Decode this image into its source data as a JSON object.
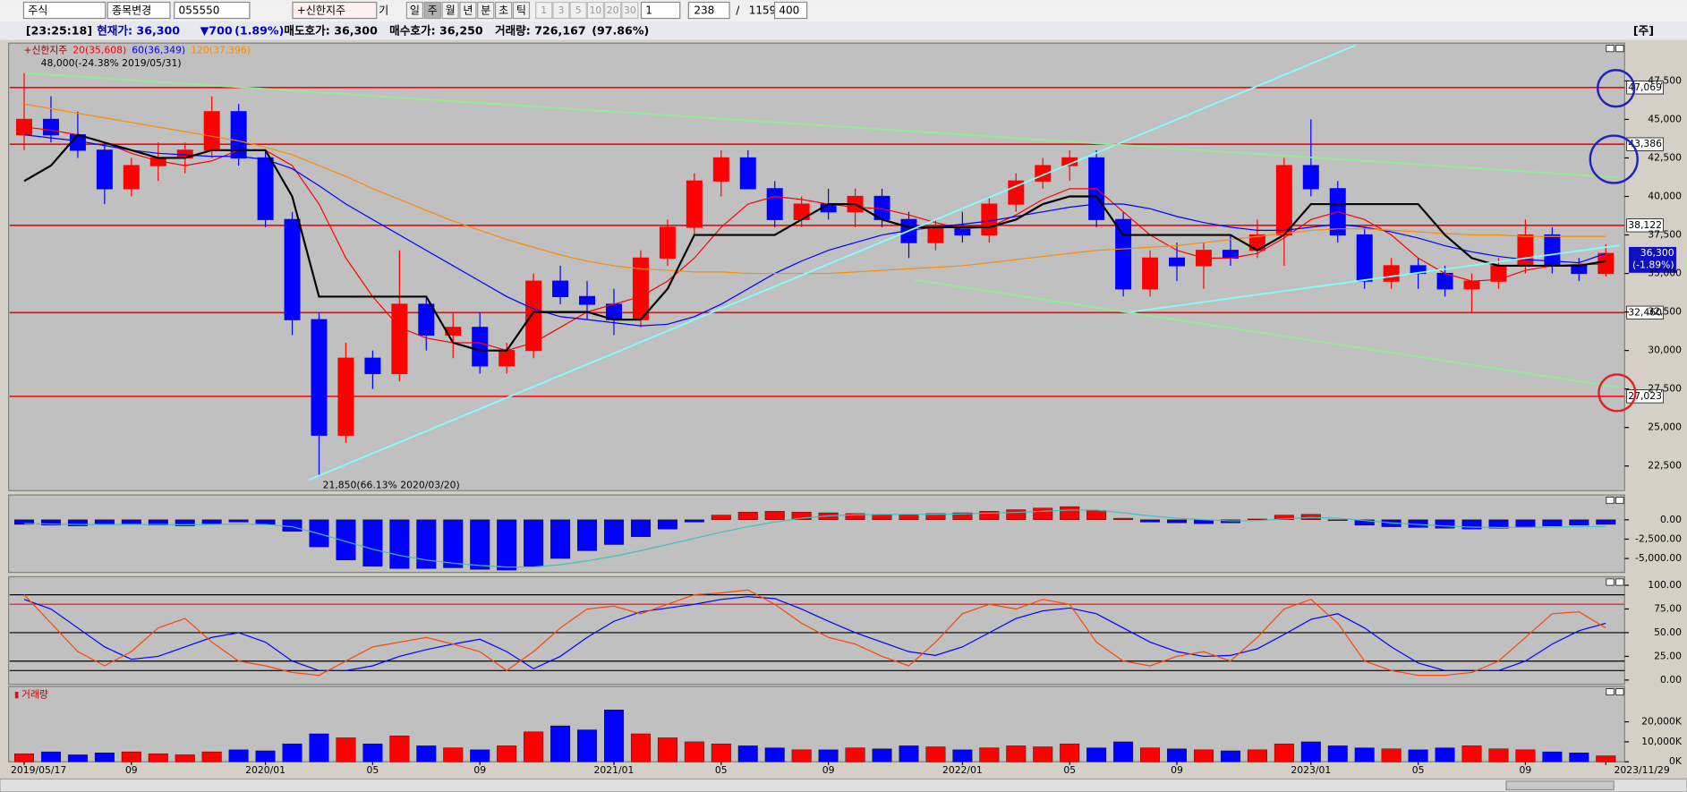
{
  "toolbar": {
    "market": "주식",
    "change": "종목변경",
    "code": "055550",
    "name": "+신한지주",
    "gi": "기",
    "periods": [
      "일",
      "주",
      "월",
      "년",
      "분",
      "초",
      "틱"
    ],
    "active_period": 1,
    "intervals": [
      "1",
      "3",
      "5",
      "10",
      "20",
      "30"
    ],
    "interval": "1",
    "count": "238",
    "sep": "/",
    "total": "1159",
    "zoom": "400"
  },
  "info": {
    "time": "[23:25:18]",
    "price": "현재가: 36,300",
    "change": "▼700",
    "rate": "(1.89%)",
    "ask": "매도호가: 36,300",
    "bid": "매수호가: 36,250",
    "volume": "거래량: 726,167",
    "volume_rate": "(97.86%)",
    "tag": "[주]"
  },
  "chart_data": [
    {
      "type": "candlestick",
      "name": "+신한지주",
      "up_color": "#ff0000",
      "down_color": "#0000ff",
      "categories": [
        "2019/05/17",
        null,
        null,
        null,
        "09",
        null,
        null,
        null,
        null,
        "2020/01",
        null,
        null,
        null,
        "05",
        null,
        null,
        null,
        "09",
        null,
        null,
        null,
        null,
        "2021/01",
        null,
        null,
        null,
        "05",
        null,
        null,
        null,
        "09",
        null,
        null,
        null,
        null,
        "2022/01",
        null,
        null,
        null,
        "05",
        null,
        null,
        null,
        "09",
        null,
        null,
        null,
        null,
        "2023/01",
        null,
        null,
        null,
        "05",
        null,
        null,
        null,
        "09",
        null,
        null,
        "2023/11/29"
      ],
      "open": [
        44000,
        45000,
        44000,
        43000,
        40500,
        42000,
        42500,
        43000,
        45500,
        42500,
        38500,
        32000,
        24500,
        29500,
        28500,
        33000,
        31000,
        31500,
        29000,
        30000,
        34500,
        33500,
        33000,
        32000,
        36000,
        38000,
        41000,
        42500,
        40500,
        38500,
        39500,
        39000,
        40000,
        38500,
        37000,
        38000,
        37500,
        39500,
        41000,
        42000,
        42500,
        38500,
        34000,
        36000,
        35500,
        36500,
        36500,
        37500,
        42000,
        40500,
        37500,
        34500,
        35500,
        35000,
        34000,
        34500,
        35500,
        37500,
        35500,
        35000
      ],
      "high": [
        48000,
        46500,
        45500,
        43500,
        42500,
        43500,
        43500,
        46500,
        46000,
        43000,
        39000,
        32500,
        30500,
        30000,
        36500,
        33500,
        32500,
        32500,
        30500,
        35000,
        35500,
        34500,
        34000,
        36500,
        38500,
        41500,
        43000,
        43000,
        41000,
        40000,
        40500,
        40500,
        40500,
        39000,
        38500,
        39000,
        40000,
        41500,
        42500,
        43000,
        43000,
        39000,
        36500,
        37000,
        37000,
        37500,
        38500,
        42500,
        45000,
        41000,
        38000,
        36000,
        36000,
        35500,
        35000,
        36000,
        38500,
        38000,
        36000,
        36900
      ],
      "low": [
        43000,
        43500,
        42500,
        39500,
        40000,
        41000,
        41500,
        42500,
        42000,
        38000,
        31000,
        21850,
        24000,
        27500,
        28000,
        30000,
        29500,
        28500,
        28500,
        29500,
        33000,
        32000,
        31000,
        31500,
        35500,
        37500,
        40000,
        40500,
        38000,
        38000,
        38500,
        38000,
        38000,
        36000,
        36500,
        37000,
        37000,
        39000,
        40500,
        41000,
        38000,
        33500,
        33500,
        34500,
        34000,
        35500,
        36000,
        35500,
        40000,
        37000,
        34000,
        34000,
        34000,
        33500,
        32500,
        34000,
        35000,
        35000,
        34500,
        34800
      ],
      "close": [
        45000,
        44000,
        43000,
        40500,
        42000,
        42500,
        43000,
        45500,
        42500,
        38500,
        32000,
        24500,
        29500,
        28500,
        33000,
        31000,
        31500,
        29000,
        30000,
        34500,
        33500,
        33000,
        32000,
        36000,
        38000,
        41000,
        42500,
        40500,
        38500,
        39500,
        39000,
        40000,
        38500,
        37000,
        38000,
        37500,
        39500,
        41000,
        42000,
        42500,
        38500,
        34000,
        36000,
        35500,
        36500,
        36000,
        37500,
        42000,
        40500,
        37500,
        34500,
        35500,
        35000,
        34000,
        34500,
        35500,
        37500,
        35500,
        35000,
        36300
      ],
      "series": [
        {
          "name": "20(35,608)",
          "color": "#ff0000",
          "values": [
            44500,
            44300,
            44000,
            43500,
            42800,
            42300,
            42000,
            42300,
            43000,
            43000,
            42000,
            39500,
            36000,
            33500,
            31500,
            30800,
            30500,
            30500,
            30000,
            30500,
            31500,
            32500,
            33000,
            33500,
            34500,
            36000,
            38000,
            39500,
            40000,
            39800,
            39500,
            39300,
            39200,
            38800,
            38300,
            37900,
            38000,
            38800,
            39800,
            40500,
            40500,
            39000,
            37500,
            36500,
            36000,
            36000,
            36300,
            37300,
            38500,
            39000,
            38500,
            37500,
            36000,
            35000,
            34500,
            34600,
            35200,
            35500,
            35600,
            35600
          ]
        },
        {
          "name": "60(36,349)",
          "color": "#0000ff",
          "values": [
            44000,
            43800,
            43600,
            43300,
            43000,
            42800,
            42700,
            42600,
            42600,
            42400,
            41800,
            40700,
            39500,
            38500,
            37500,
            36500,
            35500,
            34500,
            33500,
            32700,
            32200,
            32000,
            31800,
            31600,
            31700,
            32200,
            33000,
            34000,
            35000,
            35800,
            36500,
            37000,
            37500,
            37800,
            38000,
            38200,
            38400,
            38700,
            39000,
            39300,
            39500,
            39500,
            39200,
            38700,
            38300,
            38000,
            37800,
            37800,
            38000,
            38200,
            38000,
            37700,
            37300,
            36800,
            36400,
            36100,
            35900,
            35800,
            35700,
            36300
          ]
        },
        {
          "name": "120(37,396)",
          "color": "#ff8c00",
          "values": [
            46000,
            45700,
            45400,
            45100,
            44800,
            44500,
            44200,
            43900,
            43600,
            43200,
            42700,
            42000,
            41300,
            40500,
            39800,
            39100,
            38400,
            37800,
            37200,
            36700,
            36200,
            35800,
            35500,
            35300,
            35200,
            35100,
            35100,
            35000,
            35000,
            35000,
            35000,
            35100,
            35200,
            35300,
            35400,
            35500,
            35700,
            35900,
            36100,
            36300,
            36500,
            36600,
            36700,
            36800,
            37000,
            37200,
            37400,
            37600,
            37800,
            37900,
            37900,
            37800,
            37700,
            37600,
            37500,
            37500,
            37400,
            37400,
            37400,
            37400
          ]
        },
        {
          "color": "#000000",
          "values": [
            41000,
            42000,
            44000,
            43500,
            43000,
            42500,
            42500,
            43000,
            43000,
            43000,
            40000,
            33500,
            33500,
            33500,
            33500,
            33500,
            30500,
            30000,
            30000,
            32500,
            32500,
            32500,
            32000,
            32000,
            34000,
            37500,
            37500,
            37500,
            37500,
            38500,
            39500,
            39500,
            38500,
            38000,
            38000,
            38000,
            38000,
            38500,
            39500,
            40000,
            40000,
            37500,
            37500,
            37500,
            37500,
            37500,
            36500,
            37500,
            39500,
            39500,
            39500,
            39500,
            39500,
            37500,
            36000,
            35500,
            35500,
            35500,
            35500,
            35800
          ]
        }
      ],
      "ylim": [
        20900,
        49950
      ],
      "yticks": [
        {
          "value": 22500,
          "label": "22,500"
        },
        {
          "value": 25000,
          "label": "25,000"
        },
        {
          "value": 27500,
          "label": "27,500"
        },
        {
          "value": 30000,
          "label": "30,000"
        },
        {
          "value": 32500,
          "label": "32,500"
        },
        {
          "value": 35000,
          "label": "35,000"
        },
        {
          "value": 37500,
          "label": "37,500"
        },
        {
          "value": 40000,
          "label": "40,000"
        },
        {
          "value": 42500,
          "label": "42,500"
        },
        {
          "value": 45000,
          "label": "45,000"
        },
        {
          "value": 47500,
          "label": "47,500"
        }
      ],
      "levels": [
        {
          "value": 47069,
          "label": "47,069"
        },
        {
          "value": 43386,
          "label": "43,386"
        },
        {
          "value": 38122,
          "label": "38,122"
        },
        {
          "value": 32460,
          "label": "32,460"
        },
        {
          "value": 27023,
          "label": "27,023"
        }
      ],
      "level_color": "#ff0000",
      "last": {
        "value": 36300,
        "label": "36,300",
        "change": "(-1.89%)"
      },
      "annotations": [
        "48,000(-24.38% 2019/05/31)",
        "21,850(66.13% 2020/03/20)"
      ]
    },
    {
      "type": "bar",
      "up_color": "#ff0000",
      "down_color": "#0000ff",
      "signal_color": "#40c0c0",
      "values": [
        -600,
        -700,
        -800,
        -600,
        -500,
        -700,
        -800,
        -500,
        -300,
        -600,
        -1500,
        -3500,
        -5200,
        -6000,
        -6300,
        -6300,
        -6200,
        -6400,
        -6500,
        -6000,
        -5000,
        -4000,
        -3200,
        -2200,
        -1200,
        -300,
        600,
        1000,
        1100,
        1000,
        900,
        800,
        700,
        600,
        800,
        900,
        1100,
        1300,
        1500,
        1700,
        1200,
        200,
        -300,
        -400,
        -500,
        -400,
        100,
        600,
        700,
        -100,
        -700,
        -900,
        -1000,
        -1100,
        -1200,
        -1100,
        -900,
        -800,
        -700,
        -600
      ],
      "signal": [
        -500,
        -550,
        -600,
        -620,
        -600,
        -600,
        -650,
        -600,
        -550,
        -600,
        -900,
        -1800,
        -2800,
        -3800,
        -4600,
        -5200,
        -5600,
        -5900,
        -6100,
        -6100,
        -5800,
        -5300,
        -4700,
        -4000,
        -3200,
        -2400,
        -1600,
        -900,
        -300,
        200,
        500,
        650,
        700,
        700,
        700,
        750,
        850,
        950,
        1100,
        1250,
        1250,
        900,
        500,
        200,
        0,
        -150,
        -100,
        100,
        300,
        200,
        -100,
        -400,
        -600,
        -800,
        -950,
        -1000,
        -1000,
        -950,
        -900,
        -850
      ],
      "ylim": [
        -6800,
        3200
      ],
      "yticks": [
        {
          "value": 0,
          "label": "0.00"
        },
        {
          "value": -2500,
          "label": "-2,500.00"
        },
        {
          "value": -5000,
          "label": "-5,000.00"
        }
      ]
    },
    {
      "type": "line",
      "series": [
        {
          "color": "#0000ff",
          "values": [
            85,
            75,
            55,
            35,
            22,
            25,
            35,
            45,
            50,
            40,
            20,
            10,
            10,
            15,
            25,
            32,
            38,
            43,
            30,
            12,
            25,
            45,
            62,
            72,
            76,
            80,
            85,
            88,
            86,
            75,
            62,
            50,
            40,
            30,
            26,
            35,
            50,
            65,
            73,
            76,
            70,
            55,
            40,
            30,
            25,
            26,
            33,
            48,
            64,
            70,
            55,
            35,
            18,
            10,
            10,
            10,
            20,
            38,
            52,
            60
          ]
        },
        {
          "color": "#ff4500",
          "values": [
            90,
            60,
            30,
            15,
            30,
            55,
            65,
            40,
            20,
            15,
            8,
            5,
            20,
            35,
            40,
            45,
            38,
            30,
            10,
            30,
            55,
            75,
            78,
            70,
            80,
            90,
            92,
            95,
            80,
            60,
            45,
            38,
            25,
            15,
            40,
            70,
            80,
            75,
            85,
            80,
            40,
            20,
            15,
            25,
            30,
            20,
            45,
            75,
            85,
            60,
            20,
            10,
            5,
            5,
            8,
            20,
            45,
            70,
            72,
            55
          ]
        }
      ],
      "levels": [
        90,
        80,
        50,
        20,
        10
      ],
      "level_colors": [
        "#000000",
        "#ff0000",
        "#000000",
        "#000000",
        "#000000"
      ],
      "ylim": [
        -4.5,
        109
      ],
      "yticks": [
        {
          "value": 0,
          "label": "0.00"
        },
        {
          "value": 25,
          "label": "25.00"
        },
        {
          "value": 50,
          "label": "50.00"
        },
        {
          "value": 75,
          "label": "75.00"
        },
        {
          "value": 100,
          "label": "100.00"
        }
      ]
    },
    {
      "type": "bar",
      "name": "거래량",
      "up_color": "#ff0000",
      "down_color": "#0000ff",
      "values": [
        4000,
        5000,
        3500,
        4500,
        5000,
        4000,
        3500,
        5000,
        6000,
        5500,
        9000,
        14000,
        12000,
        9000,
        13000,
        8000,
        7000,
        6000,
        8000,
        15000,
        18000,
        16000,
        26000,
        14000,
        12000,
        10000,
        9000,
        8000,
        7000,
        6000,
        6000,
        7000,
        6500,
        8000,
        7500,
        6000,
        7000,
        8000,
        7500,
        9000,
        7000,
        10000,
        7000,
        6500,
        6000,
        5500,
        6000,
        9000,
        10000,
        8000,
        7000,
        6500,
        6000,
        7000,
        8000,
        6500,
        6000,
        5000,
        4500,
        3000
      ],
      "ylim": [
        0,
        37700
      ],
      "yticks": [
        {
          "value": 0,
          "label": "0K"
        },
        {
          "value": 10000,
          "label": "10,000K"
        },
        {
          "value": 20000,
          "label": "20,000K"
        }
      ]
    }
  ]
}
